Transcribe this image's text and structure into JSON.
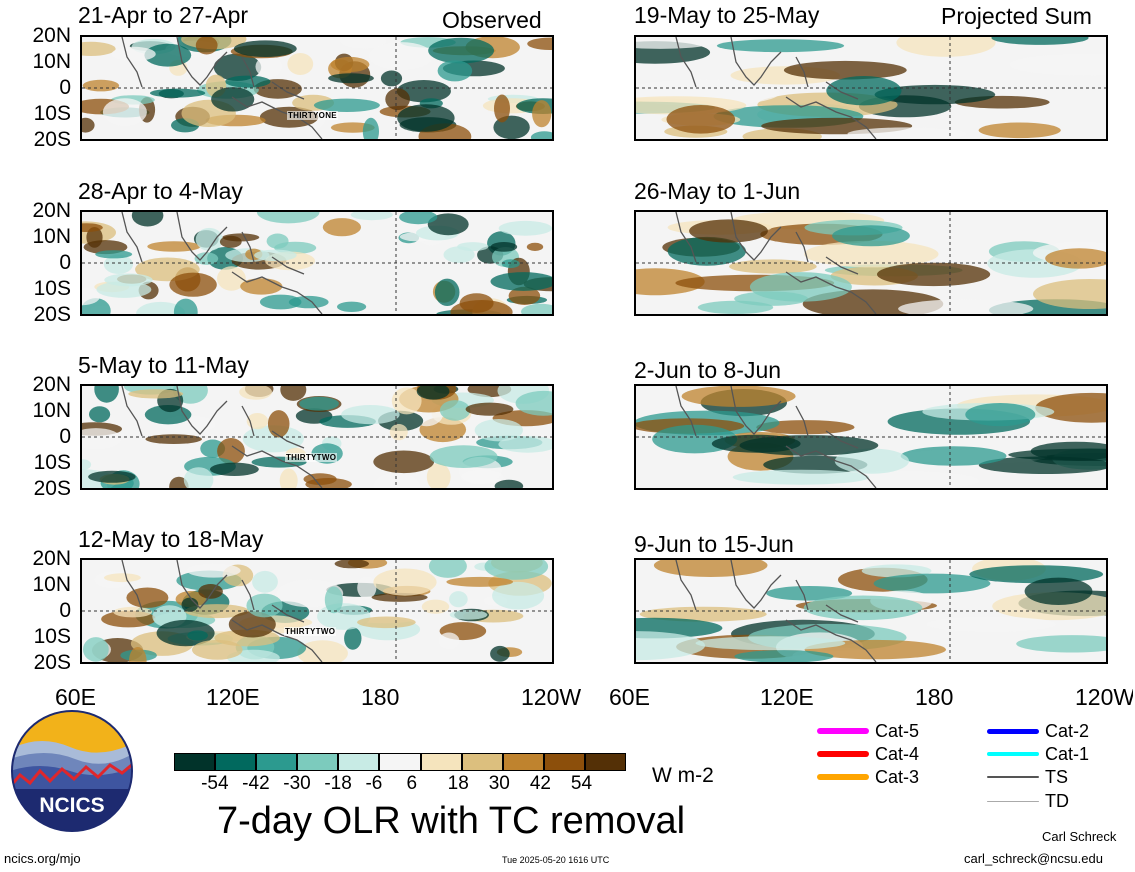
{
  "panels": [
    {
      "id": "p1",
      "title": "21-Apr to 27-Apr",
      "tag": "Observed",
      "storm": "THIRTYONE",
      "storm_pos": "south-central"
    },
    {
      "id": "p2",
      "title": "19-May to 25-May",
      "tag": "Projected Sum",
      "storm": ""
    },
    {
      "id": "p3",
      "title": "28-Apr to 4-May",
      "tag": "",
      "storm": ""
    },
    {
      "id": "p4",
      "title": "26-May to 1-Jun",
      "tag": "",
      "storm": ""
    },
    {
      "id": "p5",
      "title": "5-May to 11-May",
      "tag": "",
      "storm": "THIRTYTWO"
    },
    {
      "id": "p6",
      "title": "2-Jun to 8-Jun",
      "tag": "",
      "storm": ""
    },
    {
      "id": "p7",
      "title": "12-May to 18-May",
      "tag": "",
      "storm": "THIRTYTWO"
    },
    {
      "id": "p8",
      "title": "9-Jun to 15-Jun",
      "tag": "",
      "storm": ""
    }
  ],
  "lat_labels": [
    "20N",
    "10N",
    "0",
    "10S",
    "20S"
  ],
  "lon_labels": [
    "60E",
    "120E",
    "180",
    "120W"
  ],
  "colorbar": {
    "ticks": [
      "-54",
      "-42",
      "-30",
      "-18",
      "-6",
      "6",
      "18",
      "30",
      "42",
      "54"
    ],
    "colors": [
      "#01332a",
      "#01695e",
      "#2c9a8f",
      "#7ccbbd",
      "#c8ebe5",
      "#f5f5f5",
      "#f5e4bd",
      "#dcbf7e",
      "#bf832e",
      "#8c4f0b",
      "#543006"
    ],
    "unit": "W m-2"
  },
  "title": "7-day OLR with TC removal",
  "logo_text": "NCICS",
  "footer": {
    "left": "ncics.org/mjo",
    "center": "Tue 2025-05-20 1616 UTC",
    "author": "Carl Schreck",
    "email": "carl_schreck@ncsu.edu"
  },
  "tc_legend": [
    {
      "label": "Cat-5",
      "color": "#ff00ff"
    },
    {
      "label": "Cat-4",
      "color": "#ff0000"
    },
    {
      "label": "Cat-3",
      "color": "#ffa500"
    },
    {
      "label": "Cat-2",
      "color": "#0000ff"
    },
    {
      "label": "Cat-1",
      "color": "#00ffff"
    },
    {
      "label": "TS",
      "color": "#555555"
    },
    {
      "label": "TD",
      "color": "#aaaaaa"
    }
  ]
}
